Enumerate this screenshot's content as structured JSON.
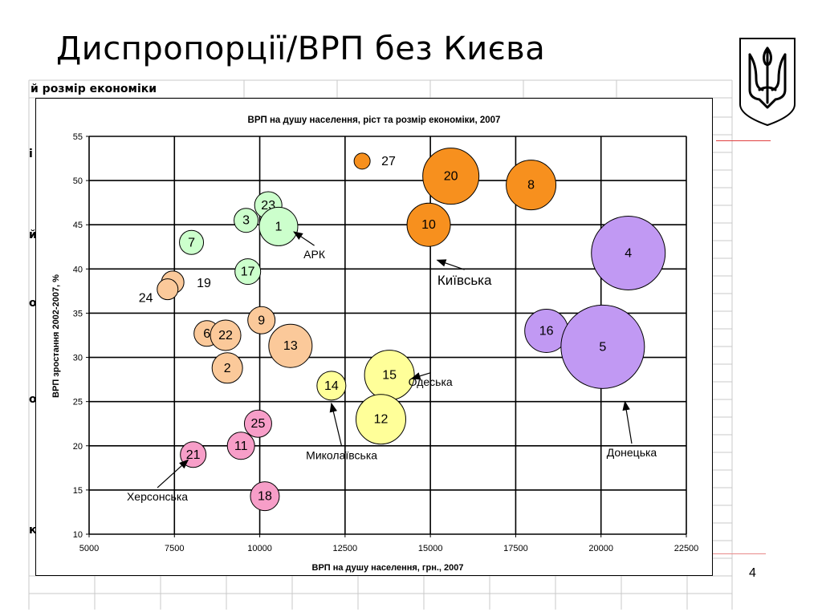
{
  "slide": {
    "title": "Диспропорції/ВРП без Києва",
    "page_number": "4",
    "background_label": "й розмір економіки",
    "background_stubs": [
      "і",
      "й",
      "о",
      "о",
      "к"
    ]
  },
  "chart_data": {
    "type": "bubble",
    "title": "ВРП на душу населення, ріст та розмір економіки, 2007",
    "xlabel": "ВРП на душу населення, грн., 2007",
    "ylabel": "ВРП зростання 2002-2007, %",
    "xlim": [
      5000,
      22500
    ],
    "ylim": [
      10,
      55
    ],
    "xticks": [
      5000,
      7500,
      10000,
      12500,
      15000,
      17500,
      20000,
      22500
    ],
    "yticks": [
      10,
      15,
      20,
      25,
      30,
      35,
      40,
      45,
      50,
      55
    ],
    "grid": true,
    "colors": {
      "orange": "#f7901e",
      "green": "#ccffcc",
      "peach": "#fbc99a",
      "yellow": "#ffff99",
      "purple": "#c199f3",
      "pink": "#f79ec8"
    },
    "points": [
      {
        "label": "27",
        "x": 13000,
        "y": 52.2,
        "r": 10,
        "color": "orange"
      },
      {
        "label": "20",
        "x": 15600,
        "y": 50.5,
        "r": 35,
        "color": "orange"
      },
      {
        "label": "8",
        "x": 17950,
        "y": 49.5,
        "r": 31,
        "color": "orange"
      },
      {
        "label": "10",
        "x": 14950,
        "y": 45.0,
        "r": 27,
        "color": "orange"
      },
      {
        "label": "23",
        "x": 10250,
        "y": 47.2,
        "r": 17,
        "color": "green"
      },
      {
        "label": "3",
        "x": 9600,
        "y": 45.5,
        "r": 15,
        "color": "green"
      },
      {
        "label": "1",
        "x": 10550,
        "y": 44.8,
        "r": 24,
        "color": "green"
      },
      {
        "label": "7",
        "x": 8000,
        "y": 43.0,
        "r": 15,
        "color": "green"
      },
      {
        "label": "17",
        "x": 9650,
        "y": 39.7,
        "r": 16,
        "color": "green"
      },
      {
        "label": "19",
        "x": 7450,
        "y": 38.5,
        "r": 14,
        "color": "peach"
      },
      {
        "label": "24",
        "x": 7300,
        "y": 37.7,
        "r": 13,
        "color": "peach"
      },
      {
        "label": "9",
        "x": 10050,
        "y": 34.2,
        "r": 17,
        "color": "peach"
      },
      {
        "label": "6",
        "x": 8450,
        "y": 32.7,
        "r": 16,
        "color": "peach"
      },
      {
        "label": "22",
        "x": 9000,
        "y": 32.5,
        "r": 19,
        "color": "peach"
      },
      {
        "label": "13",
        "x": 10900,
        "y": 31.3,
        "r": 27,
        "color": "peach"
      },
      {
        "label": "2",
        "x": 9050,
        "y": 28.8,
        "r": 19,
        "color": "peach"
      },
      {
        "label": "15",
        "x": 13800,
        "y": 28.0,
        "r": 31,
        "color": "yellow"
      },
      {
        "label": "14",
        "x": 12100,
        "y": 26.8,
        "r": 18,
        "color": "yellow"
      },
      {
        "label": "12",
        "x": 13550,
        "y": 23.0,
        "r": 31,
        "color": "yellow"
      },
      {
        "label": "4",
        "x": 20800,
        "y": 41.8,
        "r": 46,
        "color": "purple"
      },
      {
        "label": "16",
        "x": 18400,
        "y": 33.0,
        "r": 27,
        "color": "purple"
      },
      {
        "label": "5",
        "x": 20050,
        "y": 31.2,
        "r": 52,
        "color": "purple"
      },
      {
        "label": "25",
        "x": 9950,
        "y": 22.5,
        "r": 17,
        "color": "pink"
      },
      {
        "label": "11",
        "x": 9450,
        "y": 20.0,
        "r": 17,
        "color": "pink"
      },
      {
        "label": "21",
        "x": 8050,
        "y": 19.0,
        "r": 16,
        "color": "pink"
      },
      {
        "label": "18",
        "x": 10150,
        "y": 14.3,
        "r": 18,
        "color": "pink"
      }
    ],
    "annotations": [
      {
        "text": "АРК",
        "x": 11600,
        "y": 41.2,
        "arrow_to": [
          11000,
          44.2
        ],
        "size": 14
      },
      {
        "text": "Київська",
        "x": 16000,
        "y": 38.2,
        "arrow_to": [
          15200,
          41.0
        ],
        "size": 17
      },
      {
        "text": "Одеська",
        "x": 15000,
        "y": 26.8,
        "arrow_to": [
          14450,
          27.6
        ],
        "size": 14
      },
      {
        "text": "Донецька",
        "x": 20900,
        "y": 18.8,
        "arrow_to": [
          20700,
          25.0
        ],
        "size": 14
      },
      {
        "text": "Миколаївська",
        "x": 12400,
        "y": 18.5,
        "arrow_to": [
          12100,
          24.8
        ],
        "size": 14
      },
      {
        "text": "Херсонська",
        "x": 7000,
        "y": 13.8,
        "arrow_to": [
          7900,
          18.4
        ],
        "size": 14
      }
    ]
  }
}
